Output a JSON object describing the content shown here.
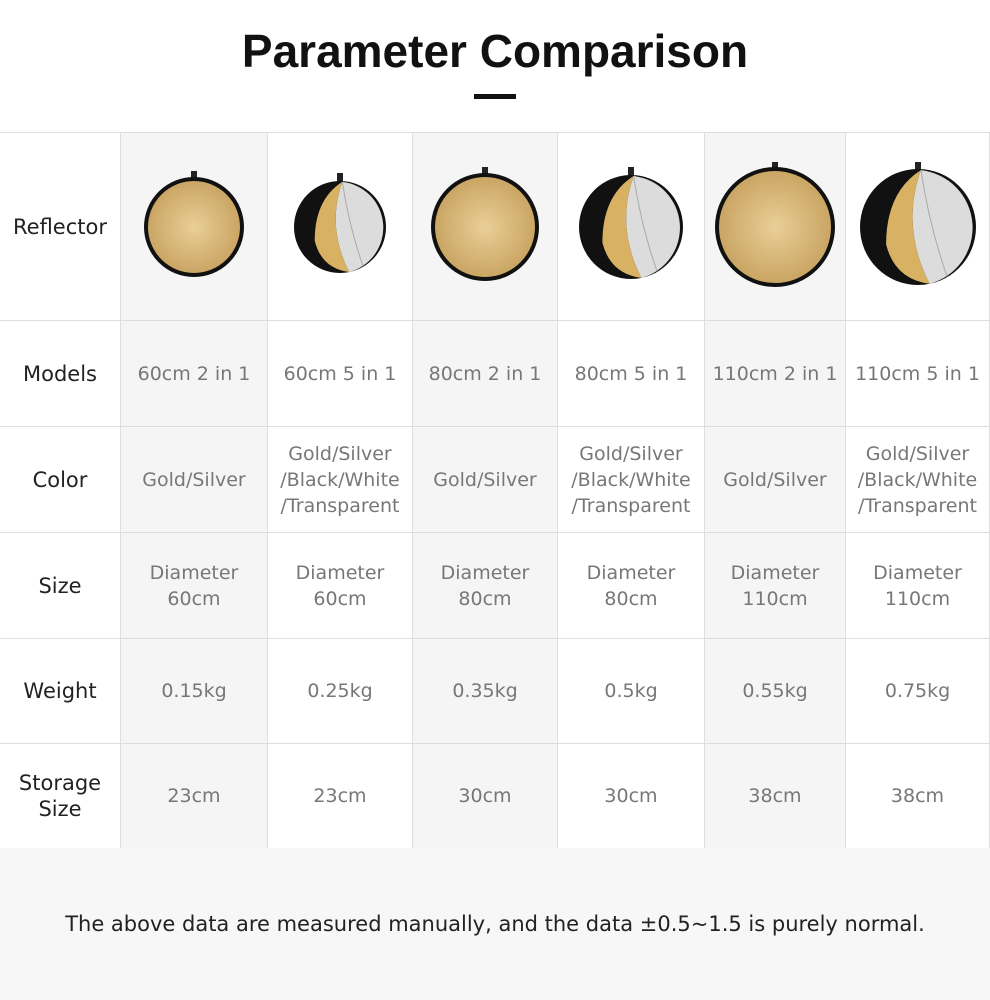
{
  "header": {
    "title": "Parameter Comparison"
  },
  "table": {
    "rows": [
      {
        "label": "Reflector"
      },
      {
        "label": "Models",
        "cells": [
          "60cm 2 in 1",
          "60cm 5 in 1",
          "80cm 2 in 1",
          "80cm 5 in 1",
          "110cm 2 in 1",
          "110cm 5 in 1"
        ]
      },
      {
        "label": "Color",
        "cells": [
          "Gold/Silver",
          "Gold/Silver\n/Black/White\n/Transparent",
          "Gold/Silver",
          "Gold/Silver\n/Black/White\n/Transparent",
          "Gold/Silver",
          "Gold/Silver\n/Black/White\n/Transparent"
        ]
      },
      {
        "label": "Size",
        "cells": [
          "Diameter\n60cm",
          "Diameter\n60cm",
          "Diameter\n80cm",
          "Diameter\n80cm",
          "Diameter\n110cm",
          "Diameter\n110cm"
        ]
      },
      {
        "label": "Weight",
        "cells": [
          "0.15kg",
          "0.25kg",
          "0.35kg",
          "0.5kg",
          "0.55kg",
          "0.75kg"
        ]
      },
      {
        "label": "Storage\nSize",
        "cells": [
          "23cm",
          "23cm",
          "30cm",
          "30cm",
          "38cm",
          "38cm"
        ]
      }
    ]
  },
  "footer": {
    "note": "The above data are measured manually, and the data ±0.5~1.5 is purely normal."
  }
}
